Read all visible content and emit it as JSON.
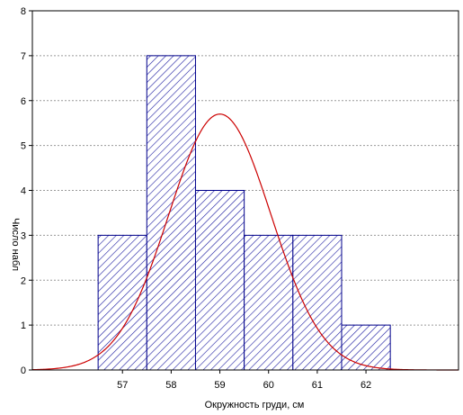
{
  "chart_data": {
    "type": "bar",
    "categories": [
      "57",
      "58",
      "59",
      "60",
      "61",
      "62"
    ],
    "values": [
      3,
      7,
      4,
      3,
      3,
      1
    ],
    "xlabel": "Окружность груди, см",
    "ylabel": "Число набл",
    "ylim": [
      0,
      8
    ],
    "yticks": [
      0,
      1,
      2,
      3,
      4,
      5,
      6,
      7,
      8
    ],
    "xlim": [
      55.15,
      63.9
    ],
    "grid": true,
    "legend": "none",
    "normal_fit": {
      "mean": 59.0,
      "sd": 1.05,
      "peak": 5.7
    },
    "colors": {
      "bar_edge": "#00008b",
      "hatch": "#1a1aa0",
      "curve": "#cc0000",
      "grid": "#9a9a9a"
    }
  }
}
